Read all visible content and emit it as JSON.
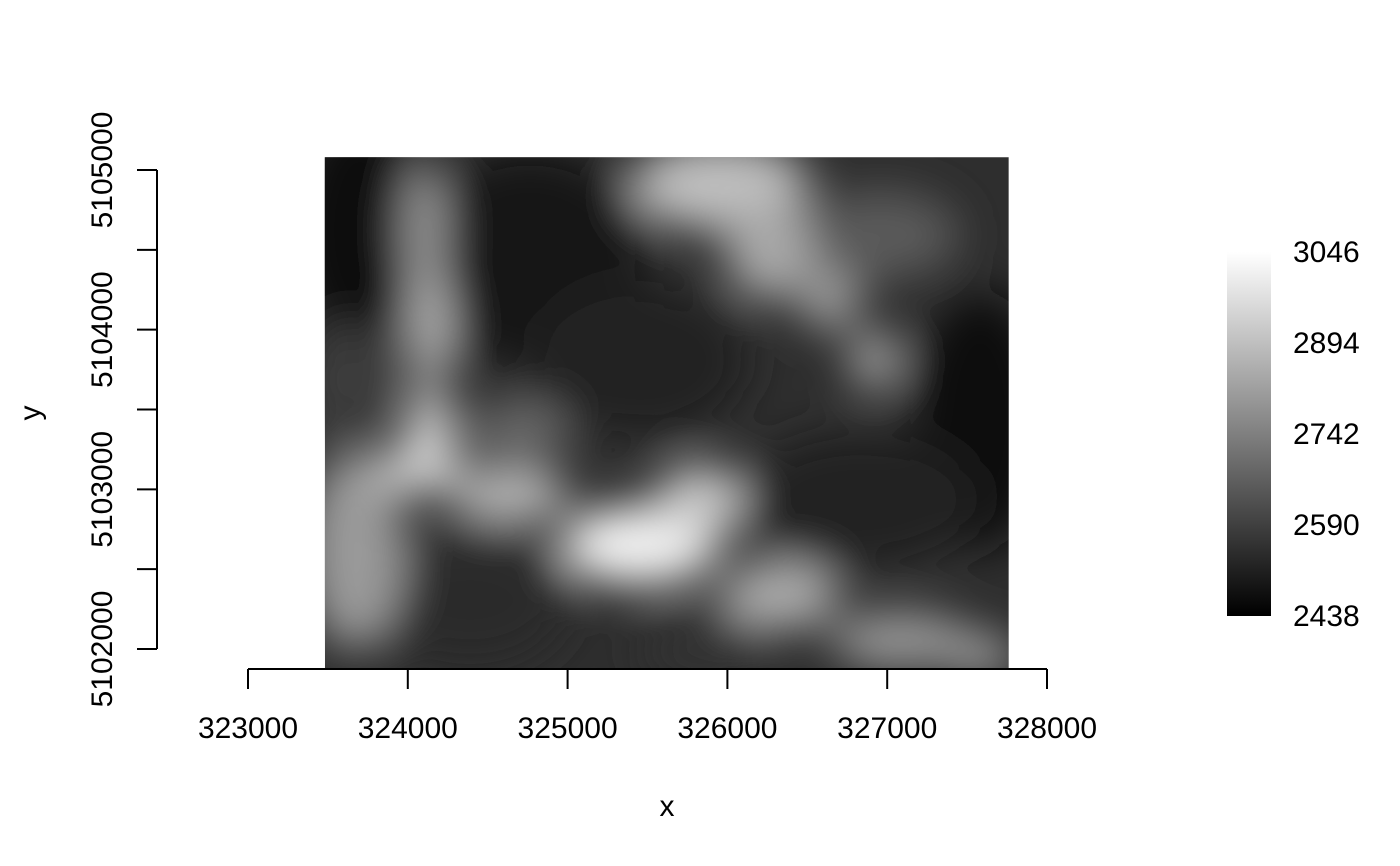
{
  "chart_data": {
    "type": "heatmap",
    "title": "",
    "xlabel": "x",
    "ylabel": "y",
    "xlim": [
      323000,
      328000
    ],
    "ylim": [
      5102000,
      5105000
    ],
    "raster_extent": {
      "x": [
        323480,
        327760
      ],
      "y": [
        5101880,
        5105080
      ]
    },
    "x_ticks": [
      323000,
      324000,
      325000,
      326000,
      327000,
      328000
    ],
    "x_tick_labels": [
      "323000",
      "324000",
      "325000",
      "326000",
      "327000",
      "328000"
    ],
    "y_ticks": [
      5102000,
      5102500,
      5103000,
      5103500,
      5104000,
      5104500,
      5105000
    ],
    "y_tick_labels": [
      "5102000",
      "",
      "5103000",
      "",
      "5104000",
      "",
      "5105000"
    ],
    "colorscale": "grayscale",
    "value_range": [
      2438,
      3046
    ],
    "colorbar_ticks": [
      2438,
      2590,
      2742,
      2894,
      3046
    ],
    "colorbar_tick_labels": [
      "2438",
      "2590",
      "2742",
      "2894",
      "3046"
    ],
    "grid": false,
    "legend_placement": "right"
  },
  "colors": {
    "low": "#000000",
    "high": "#ffffff",
    "axis": "#000000"
  }
}
